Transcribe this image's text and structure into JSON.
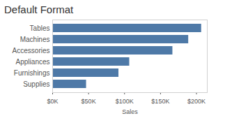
{
  "chart_data": {
    "type": "bar",
    "title": "Default Format",
    "orientation": "horizontal",
    "categories": [
      "Tables",
      "Machines",
      "Accessories",
      "Appliances",
      "Furnishings",
      "Supplies"
    ],
    "values": [
      207000,
      189000,
      167000,
      107000,
      92000,
      47000
    ],
    "color": "#4e79a7",
    "xlabel": "Sales",
    "xlim": [
      0,
      215000
    ],
    "xticks": [
      {
        "value": 0,
        "label": "$0K"
      },
      {
        "value": 50000,
        "label": "$50K"
      },
      {
        "value": 100000,
        "label": "$100K"
      },
      {
        "value": 150000,
        "label": "$150K"
      },
      {
        "value": 200000,
        "label": "$200K"
      }
    ],
    "grid": false
  }
}
